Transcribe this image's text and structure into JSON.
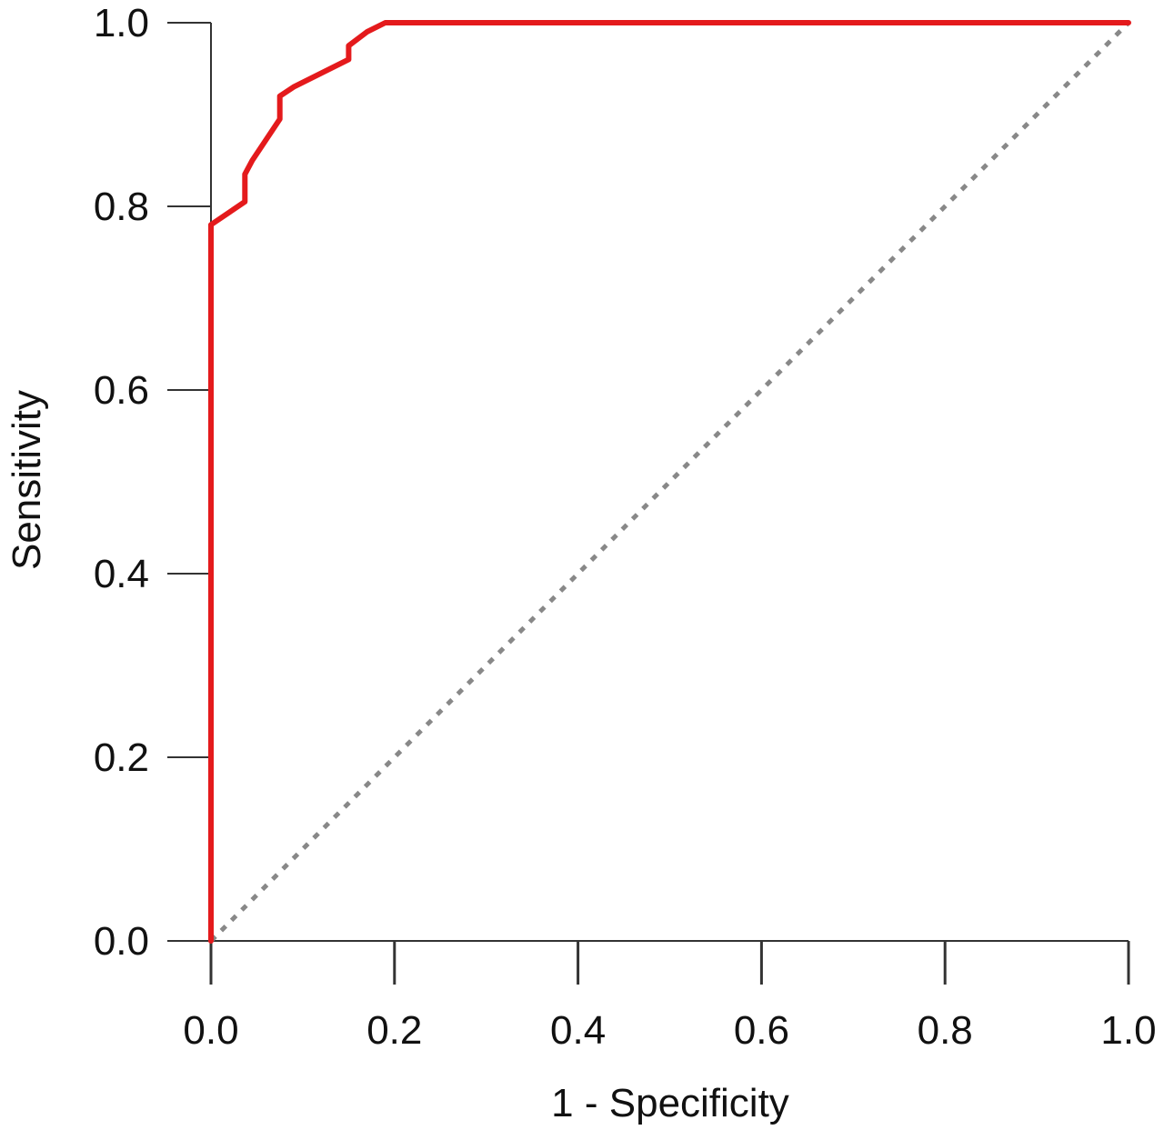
{
  "chart_data": {
    "type": "line",
    "title": "",
    "xlabel": "1 - Specificity",
    "ylabel": "Sensitivity",
    "xlim": [
      0,
      1
    ],
    "ylim": [
      0,
      1
    ],
    "x_ticks": [
      "0.0",
      "0.2",
      "0.4",
      "0.6",
      "0.8",
      "1.0"
    ],
    "y_ticks": [
      "0.0",
      "0.2",
      "0.4",
      "0.6",
      "0.8",
      "1.0"
    ],
    "grid": false,
    "legend": "none",
    "series": [
      {
        "color": "#e41a1c",
        "style": "solid",
        "x": [
          0.0,
          0.0,
          0.0,
          0.037,
          0.037,
          0.045,
          0.075,
          0.075,
          0.09,
          0.15,
          0.15,
          0.17,
          0.19,
          1.0
        ],
        "y": [
          0.0,
          0.5,
          0.78,
          0.805,
          0.835,
          0.85,
          0.895,
          0.92,
          0.93,
          0.96,
          0.975,
          0.99,
          1.0,
          1.0
        ]
      },
      {
        "color": "#888888",
        "style": "dotted",
        "x": [
          0.0,
          1.0
        ],
        "y": [
          0.0,
          1.0
        ]
      }
    ]
  }
}
